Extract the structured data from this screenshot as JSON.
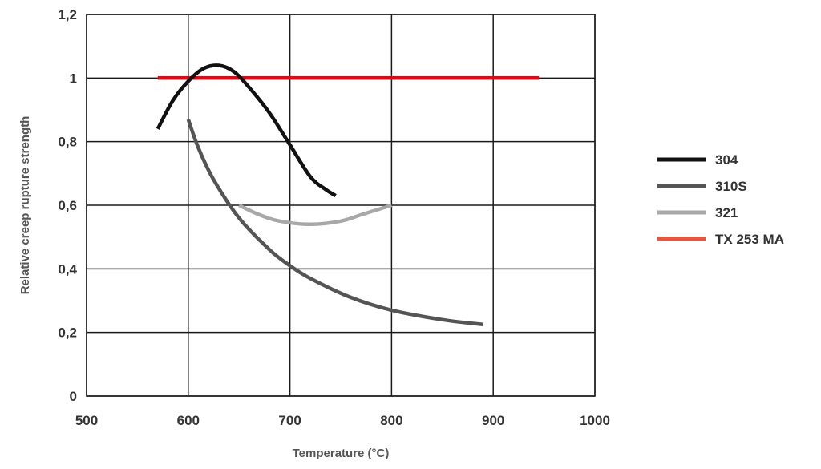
{
  "chart_data": {
    "type": "line",
    "title": "",
    "xlabel": "Temperature (°C)",
    "ylabel": "Relative creep rupture strength",
    "xlim": [
      500,
      1000
    ],
    "ylim": [
      0,
      1.2
    ],
    "x_ticks": [
      500,
      600,
      700,
      800,
      900,
      1000
    ],
    "x_tick_labels": [
      "500",
      "600",
      "700",
      "800",
      "900",
      "1000"
    ],
    "y_ticks": [
      0,
      0.2,
      0.4,
      0.6,
      0.8,
      1.0,
      1.2
    ],
    "y_tick_labels": [
      "0",
      "0,2",
      "0,4",
      "0,6",
      "0,8",
      "1",
      "1,2"
    ],
    "grid": true,
    "legend_position": "right",
    "series": [
      {
        "name": "304",
        "color": "#111111",
        "x": [
          570,
          585,
          600,
          615,
          630,
          645,
          660,
          680,
          700,
          720,
          735,
          745
        ],
        "y": [
          0.84,
          0.93,
          0.99,
          1.03,
          1.04,
          1.02,
          0.97,
          0.89,
          0.79,
          0.69,
          0.65,
          0.63
        ]
      },
      {
        "name": "310S",
        "color": "#555555",
        "x": [
          600,
          610,
          625,
          650,
          680,
          700,
          720,
          760,
          800,
          850,
          890
        ],
        "y": [
          0.87,
          0.78,
          0.68,
          0.56,
          0.46,
          0.41,
          0.37,
          0.31,
          0.27,
          0.24,
          0.225
        ]
      },
      {
        "name": "321",
        "color": "#a8a8a8",
        "x": [
          650,
          670,
          690,
          720,
          750,
          770,
          785,
          800
        ],
        "y": [
          0.6,
          0.57,
          0.55,
          0.54,
          0.55,
          0.57,
          0.585,
          0.6
        ]
      },
      {
        "name": "TX 253 MA",
        "color": "#e30613",
        "legend_color": "#e8553f",
        "x": [
          570,
          945
        ],
        "y": [
          1.0,
          1.0
        ]
      }
    ]
  }
}
